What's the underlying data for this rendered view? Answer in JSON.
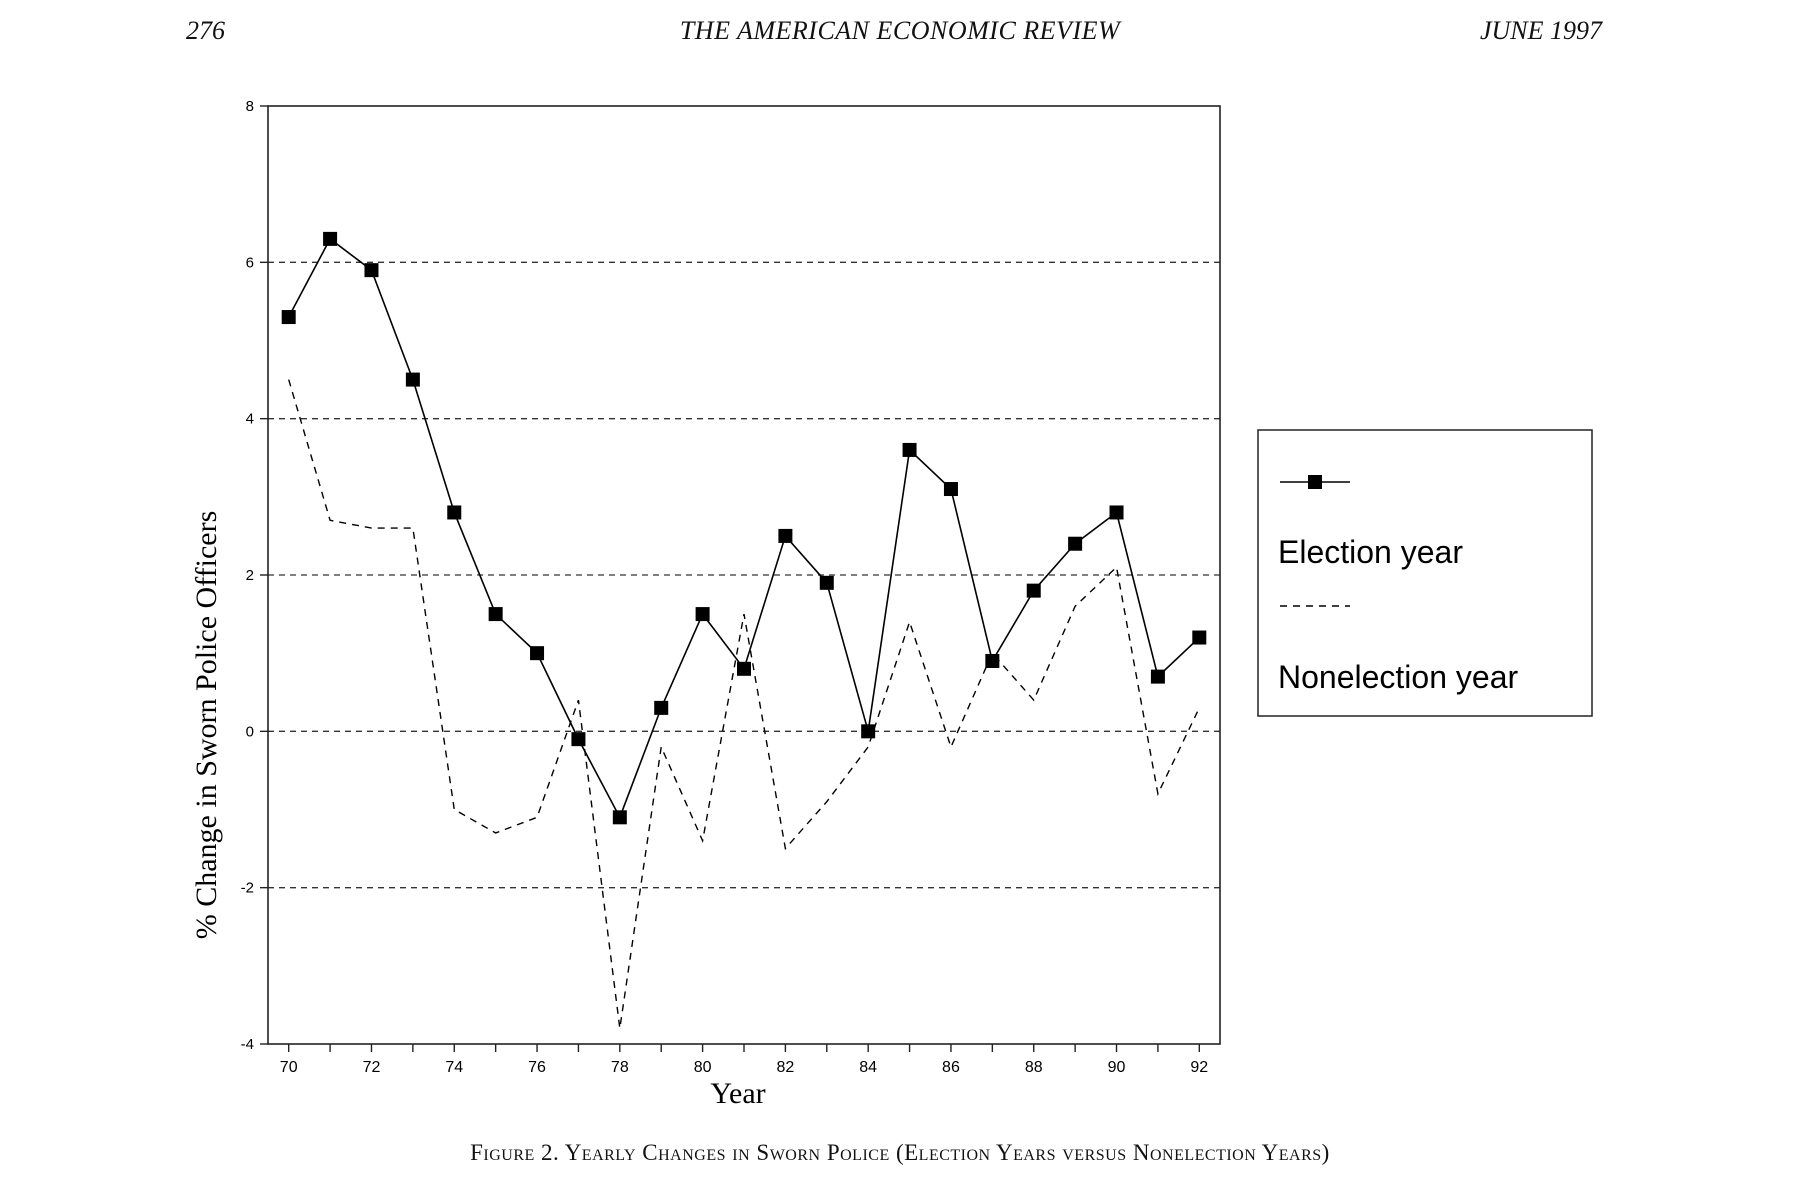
{
  "header": {
    "page_number": "276",
    "journal_title": "THE AMERICAN ECONOMIC REVIEW",
    "issue_date": "JUNE 1997"
  },
  "caption": "Figure 2. Yearly Changes in Sworn Police (Election Years versus Nonelection Years)",
  "chart_data": {
    "type": "line",
    "title": "",
    "xlabel": "Year",
    "ylabel": "% Change in Sworn Police Officers",
    "x": [
      70,
      71,
      72,
      73,
      74,
      75,
      76,
      77,
      78,
      79,
      80,
      81,
      82,
      83,
      84,
      85,
      86,
      87,
      88,
      89,
      90,
      91,
      92
    ],
    "xlim": [
      69.5,
      92.5
    ],
    "ylim": [
      -4,
      8
    ],
    "xticks": [
      "70",
      "72",
      "74",
      "76",
      "78",
      "80",
      "82",
      "84",
      "86",
      "88",
      "90",
      "92"
    ],
    "yticks": [
      "-4",
      "-2",
      "0",
      "2",
      "4",
      "6",
      "8"
    ],
    "grid": "dashed horizontal lines at -2, 0, 2, 4, 6",
    "legend_position": "right, outside plot",
    "series": [
      {
        "name": "Election year",
        "style": "solid line with square markers",
        "color": "#000000",
        "values": [
          5.3,
          6.3,
          5.9,
          4.5,
          2.8,
          1.5,
          1.0,
          -0.1,
          -1.1,
          0.3,
          1.5,
          0.8,
          2.5,
          1.9,
          0.0,
          3.6,
          3.1,
          0.9,
          1.8,
          2.4,
          2.8,
          0.7,
          1.2
        ]
      },
      {
        "name": "Nonelection year",
        "style": "dashed line",
        "color": "#000000",
        "values": [
          4.5,
          2.7,
          2.6,
          2.6,
          -1.0,
          -1.3,
          -1.1,
          0.4,
          -3.8,
          -0.2,
          -1.4,
          1.5,
          -1.5,
          -0.9,
          -0.2,
          1.4,
          -0.2,
          1.0,
          0.4,
          1.6,
          2.1,
          -0.8,
          0.3
        ]
      }
    ]
  }
}
